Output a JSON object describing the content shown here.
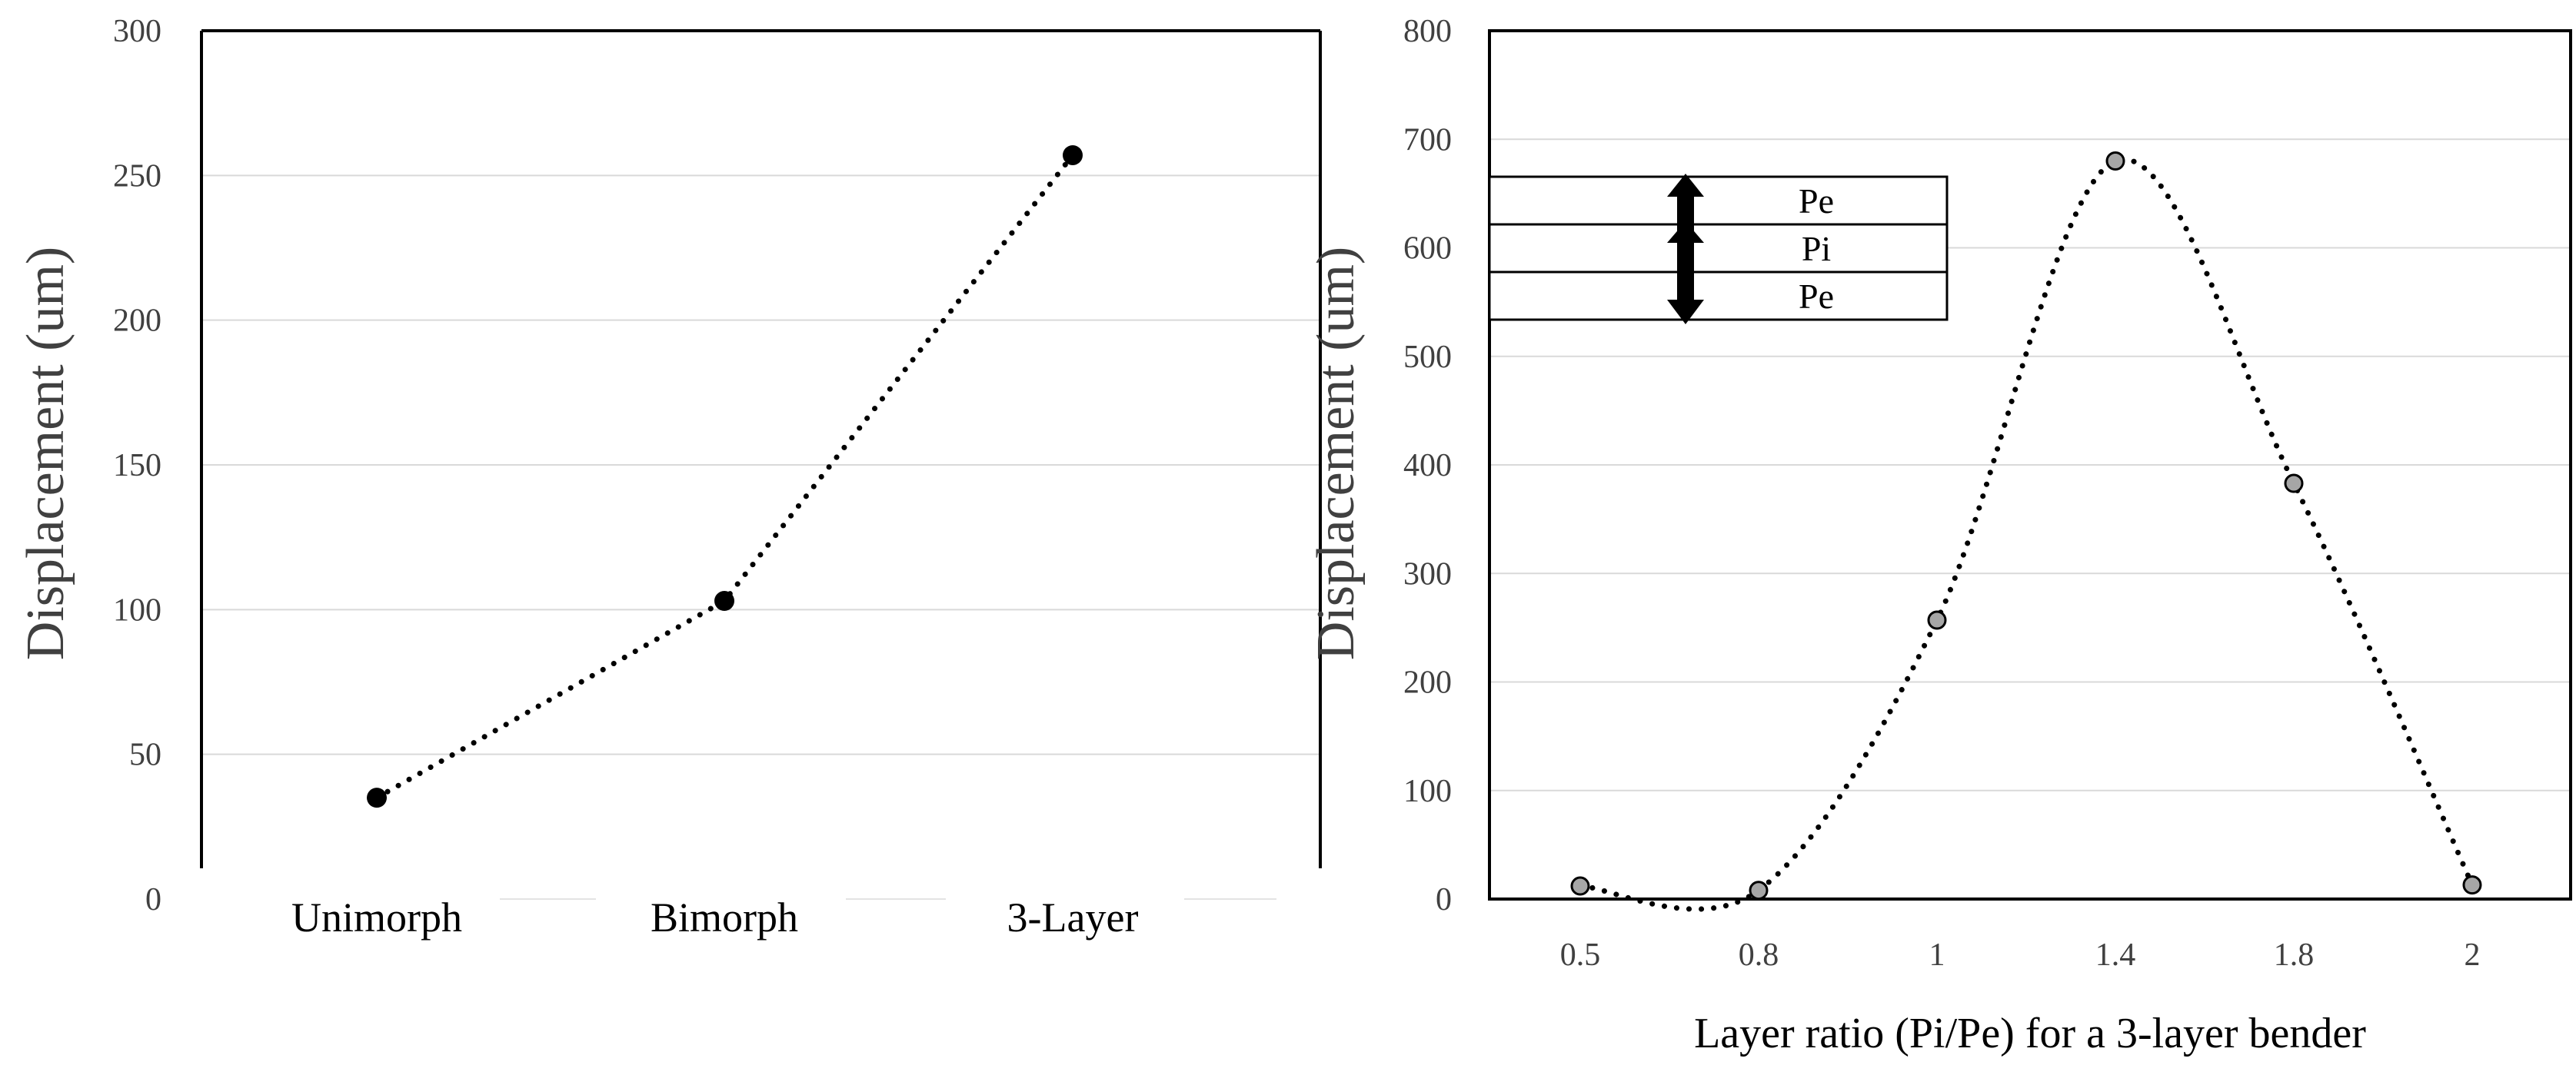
{
  "chart_data": [
    {
      "type": "line",
      "title": "",
      "xlabel": "",
      "ylabel": "Displacement (um)",
      "categories": [
        "Unimorph",
        "Bimorph",
        "3-Layer"
      ],
      "series": [
        {
          "name": "Displacement",
          "values": [
            35,
            103,
            257
          ]
        }
      ],
      "y_ticks": [
        "0",
        "50",
        "100",
        "150",
        "200",
        "250",
        "300"
      ],
      "ylim": [
        0,
        300
      ],
      "grid": true,
      "line_style": "dotted",
      "marker_color": "#000000",
      "line_color": "#000000"
    },
    {
      "type": "line",
      "title": "",
      "xlabel": "Layer ratio (Pi/Pe) for a 3-layer bender",
      "ylabel": "Displacement (um)",
      "categories": [
        "0.5",
        "0.8",
        "1",
        "1.4",
        "1.8",
        "2"
      ],
      "series": [
        {
          "name": "Displacement",
          "values": [
            12,
            8,
            257,
            680,
            383,
            13
          ]
        }
      ],
      "y_ticks": [
        "0",
        "100",
        "200",
        "300",
        "400",
        "500",
        "600",
        "700",
        "800"
      ],
      "ylim": [
        0,
        800
      ],
      "grid": true,
      "line_style": "dotted smooth",
      "marker_color": "#a6a6a6",
      "line_color": "#000000",
      "inset": {
        "layers": [
          "Pe",
          "Pi",
          "Pe"
        ]
      }
    }
  ]
}
